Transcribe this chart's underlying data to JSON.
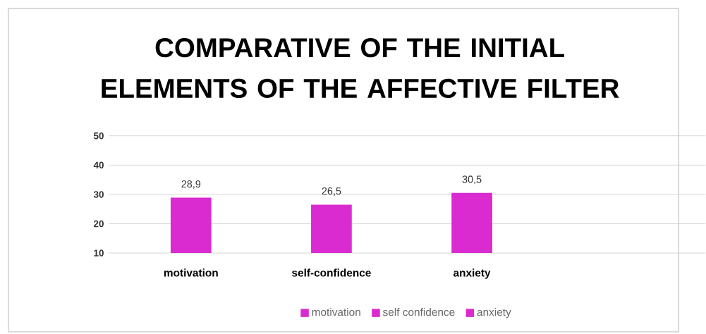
{
  "chart_data": {
    "type": "bar",
    "title": "COMPARATIVE OF THE INITIAL ELEMENTS OF THE AFFECTIVE FILTER",
    "categories": [
      "motivation",
      "self-confidence",
      "anxiety"
    ],
    "series": [
      {
        "name": "motivation",
        "color": "#d92bd0",
        "values": [
          28.9,
          null,
          null
        ],
        "value_labels": [
          "28,9",
          null,
          null
        ]
      },
      {
        "name": "self confidence",
        "color": "#d92bd0",
        "values": [
          null,
          26.5,
          null
        ],
        "value_labels": [
          null,
          "26,5",
          null
        ]
      },
      {
        "name": "anxiety",
        "color": "#d92bd0",
        "values": [
          null,
          null,
          30.5
        ],
        "value_labels": [
          null,
          null,
          "30,5"
        ]
      }
    ],
    "ylim": [
      10,
      50
    ],
    "yticks": [
      10,
      20,
      30,
      40,
      50
    ],
    "grid": "y",
    "legend": "bottom"
  }
}
